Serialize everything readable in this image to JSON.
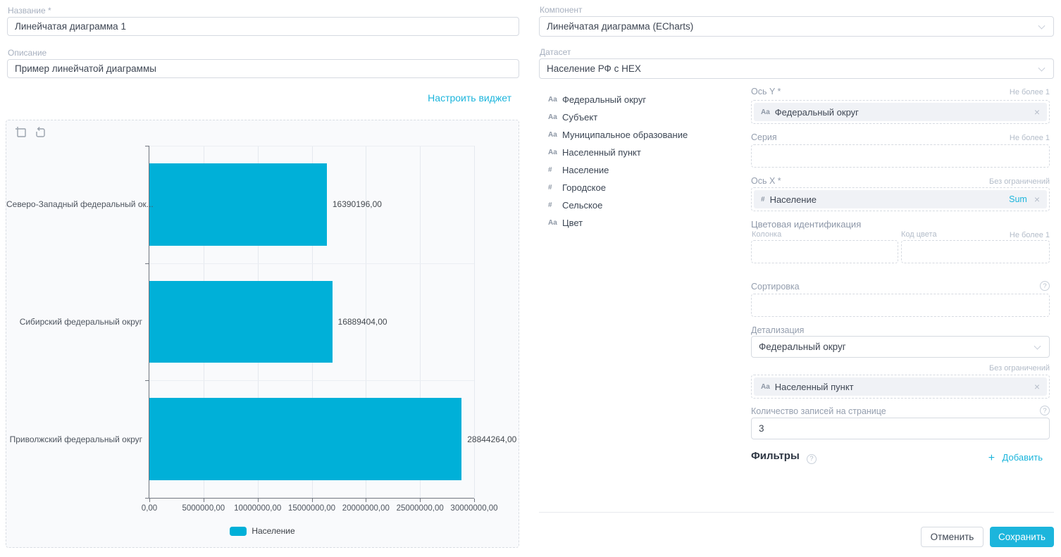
{
  "accent": "#1cb5dc",
  "left_form": {
    "name_label": "Название *",
    "name_value": "Линейчатая диаграмма 1",
    "description_label": "Описание",
    "description_value": "Пример линейчатой диаграммы",
    "configure_link": "Настроить виджет"
  },
  "chart_data": {
    "type": "bar",
    "orientation": "horizontal",
    "categories": [
      "Северо-Западный федеральный ок...",
      "Сибирский федеральный округ",
      "Приволжский федеральный округ"
    ],
    "values": [
      16390196,
      16889404,
      28844264
    ],
    "value_labels": [
      "16390196,00",
      "16889404,00",
      "28844264,00"
    ],
    "x_ticks": [
      "0,00",
      "5000000,00",
      "10000000,00",
      "15000000,00",
      "20000000,00",
      "25000000,00",
      "30000000,00"
    ],
    "xlim": [
      0,
      30000000
    ],
    "legend": [
      "Население"
    ],
    "legend_position": "bottom",
    "bar_color": "#00b0d8",
    "grid": true
  },
  "right_panel": {
    "component": {
      "label": "Компонент",
      "value": "Линейчатая диаграмма (ECharts)"
    },
    "dataset": {
      "label": "Датасет",
      "value": "Население РФ с HEX"
    },
    "fields": [
      {
        "icon": "Aa",
        "label": "Федеральный округ"
      },
      {
        "icon": "Aa",
        "label": "Субъект"
      },
      {
        "icon": "Aa",
        "label": "Муниципальное образование"
      },
      {
        "icon": "Aa",
        "label": "Населенный пункт"
      },
      {
        "icon": "#",
        "label": "Население"
      },
      {
        "icon": "#",
        "label": "Городское"
      },
      {
        "icon": "#",
        "label": "Сельское"
      },
      {
        "icon": "Aa",
        "label": "Цвет"
      }
    ],
    "axis_y": {
      "label": "Ось Y *",
      "hint": "Не более 1",
      "chip_icon": "Aa",
      "chip_label": "Федеральный округ"
    },
    "series": {
      "label": "Серия",
      "hint": "Не более 1"
    },
    "axis_x": {
      "label": "Ось X *",
      "hint": "Без ограничений",
      "chip_icon": "#",
      "chip_label": "Население",
      "badge": "Sum"
    },
    "color_identification": {
      "label": "Цветовая идентификация",
      "column_label": "Колонка",
      "code_label": "Код цвета",
      "hint": "Не более 1"
    },
    "sorting": {
      "label": "Сортировка"
    },
    "detailing": {
      "label": "Детализация",
      "value": "Федеральный округ",
      "hint": "Без ограничений",
      "chip_icon": "Aa",
      "chip_label": "Населенный пункт"
    },
    "page_size": {
      "label": "Количество записей на странице",
      "value": "3"
    },
    "filters": {
      "label": "Фильтры",
      "add_label": "Добавить"
    },
    "footer": {
      "cancel": "Отменить",
      "save": "Сохранить"
    }
  }
}
